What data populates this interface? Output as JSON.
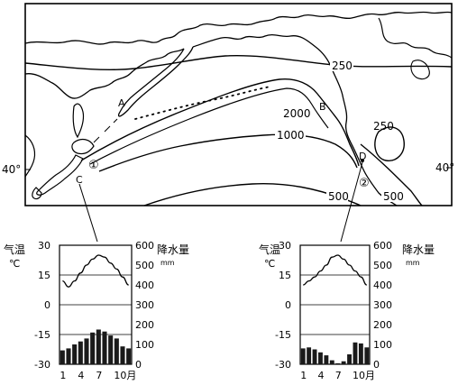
{
  "map": {
    "isolines": [
      {
        "id": "250-north",
        "value": "250"
      },
      {
        "id": "2000",
        "value": "2000"
      },
      {
        "id": "1000",
        "value": "1000"
      },
      {
        "id": "250-east",
        "value": "250"
      },
      {
        "id": "500-a",
        "value": "500"
      },
      {
        "id": "500-b",
        "value": "500"
      }
    ],
    "points": [
      "A",
      "B",
      "C",
      "D"
    ],
    "circled": [
      "①",
      "②"
    ],
    "latitude_label": "40°"
  },
  "climate_charts": [
    {
      "id": "station-1",
      "temp_axis_title": "气温",
      "temp_unit": "℃",
      "precip_axis_title": "降水量",
      "precip_unit": "mm",
      "temp_ticks": [
        "30",
        "15",
        "0",
        "-15",
        "-30"
      ],
      "precip_ticks": [
        "600",
        "500",
        "400",
        "300",
        "200",
        "100",
        "0"
      ],
      "month_labels": [
        "1",
        "4",
        "7",
        "10月"
      ],
      "temperature": [
        12,
        9,
        12,
        16,
        20,
        23,
        25,
        24,
        21,
        18,
        14,
        10
      ],
      "precipitation": [
        70,
        80,
        100,
        115,
        130,
        160,
        175,
        165,
        145,
        130,
        90,
        80
      ]
    },
    {
      "id": "station-2",
      "temp_axis_title": "气温",
      "temp_unit": "℃",
      "precip_axis_title": "降水量",
      "precip_unit": "mm",
      "temp_ticks": [
        "30",
        "15",
        "0",
        "-15",
        "-30"
      ],
      "precip_ticks": [
        "600",
        "500",
        "400",
        "300",
        "200",
        "100",
        "0"
      ],
      "month_labels": [
        "1",
        "4",
        "7",
        "10月"
      ],
      "temperature": [
        10,
        12,
        14,
        17,
        20,
        24,
        25,
        23,
        20,
        17,
        14,
        10
      ],
      "precipitation": [
        80,
        85,
        75,
        60,
        45,
        20,
        5,
        15,
        50,
        110,
        105,
        85
      ]
    }
  ]
}
